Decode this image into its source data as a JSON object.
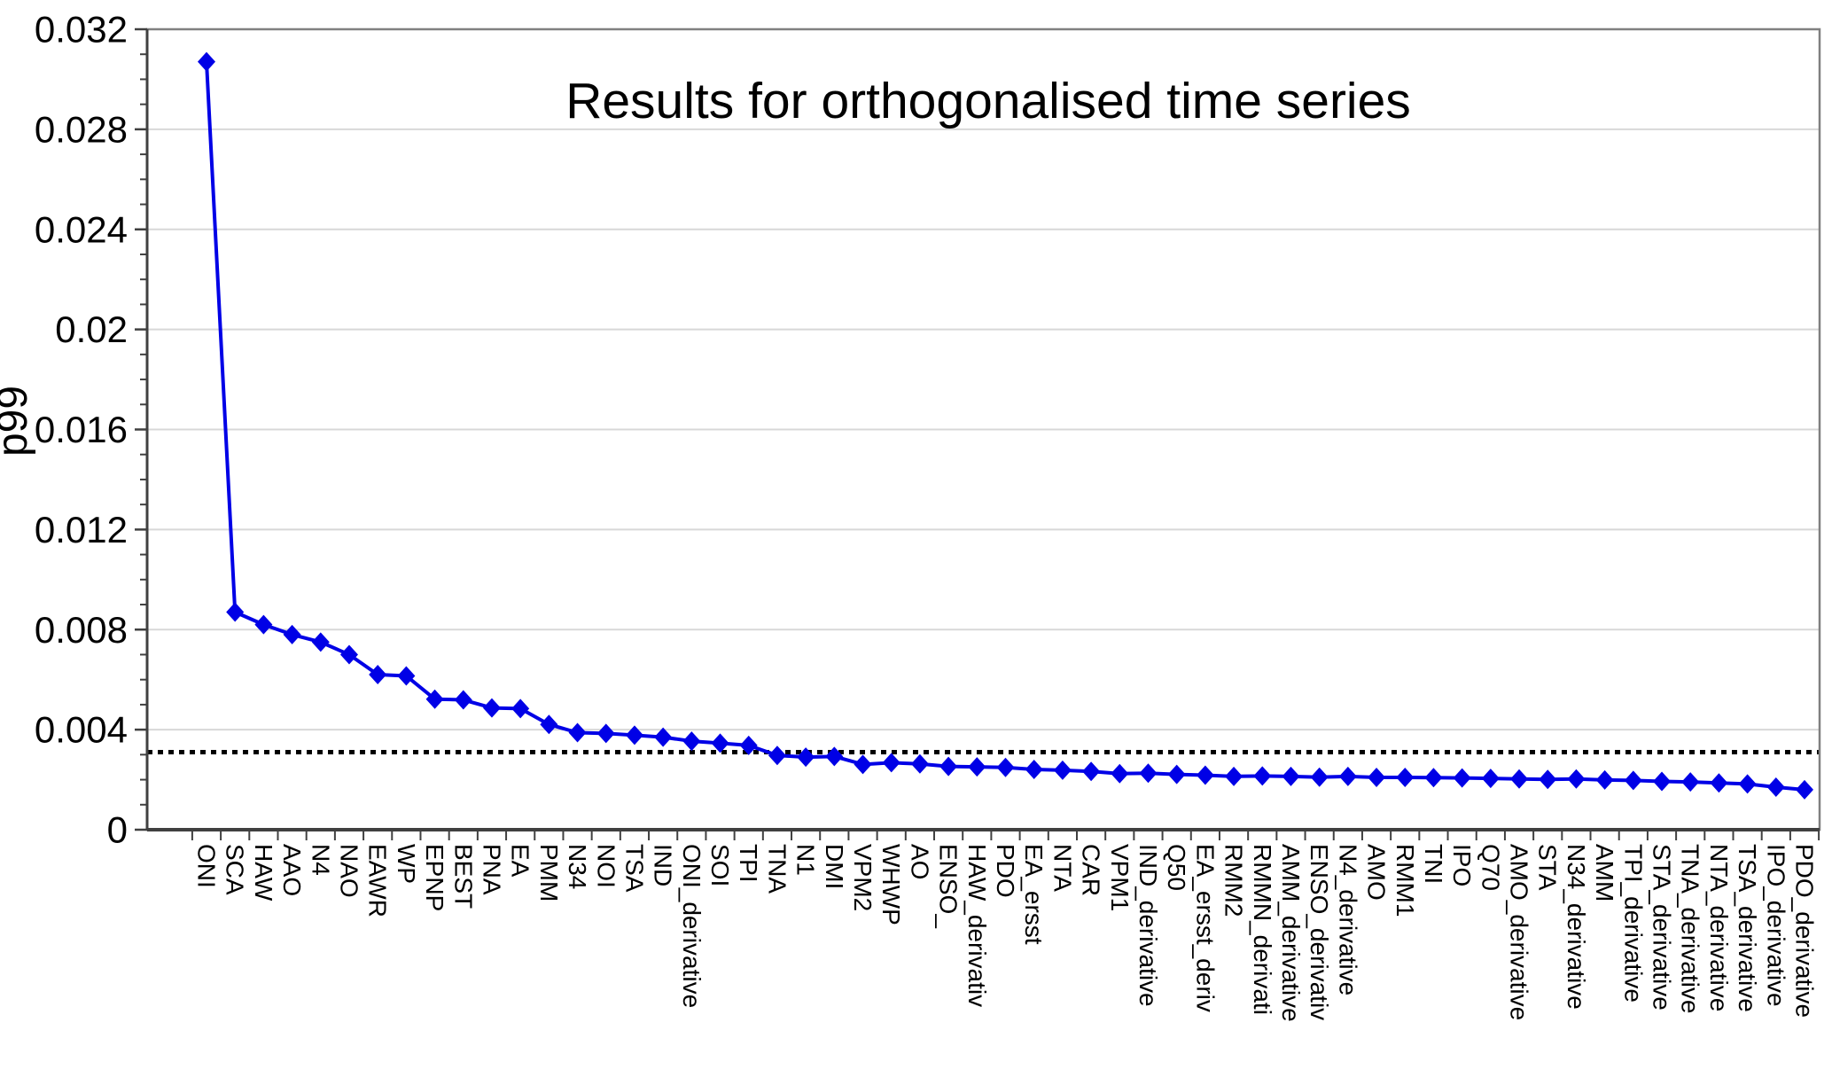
{
  "chart_data": {
    "type": "line",
    "title": "Results for orthogonalised time series",
    "ylabel": "p99",
    "xlabel": "",
    "ylim": [
      0,
      0.032
    ],
    "y_major_tick_interval": 0.004,
    "y_minor_tick_interval": 0.001,
    "y_tick_labels": [
      "0",
      "0.004",
      "0.008",
      "0.012",
      "0.016",
      "0.02",
      "0.024",
      "0.028",
      "0.032"
    ],
    "grid": "horizontal-light-gray",
    "legend": "none",
    "reference_line": {
      "value": 0.0031,
      "style": "dotted",
      "color": "#000000"
    },
    "colors": {
      "series": "#0000e6",
      "gridline": "#d8d8d8",
      "frame": "#808080",
      "axis": "#404040"
    },
    "series": [
      {
        "name": "p99",
        "marker": "diamond",
        "color": "#0000e6",
        "categories": [
          "ONI",
          "SCA",
          "HAW",
          "AAO",
          "N4",
          "NAO",
          "EAWR",
          "WP",
          "EPNP",
          "BEST",
          "PNA",
          "EA",
          "PMM",
          "N34",
          "NOI",
          "TSA",
          "IND",
          "ONI_derivative",
          "SOI",
          "TPI",
          "TNA",
          "N1",
          "DMI",
          "VPM2",
          "WHWP",
          "AO",
          "ENSO_",
          "HAW_derivativ",
          "PDO",
          "EA_ersst",
          "NTA",
          "CAR",
          "VPM1",
          "IND_derivative",
          "Q50",
          "EA_ersst_deriv",
          "RMM2",
          "RMMN_derivati",
          "AMM_derivative",
          "ENSO_derivativ",
          "N4_derivative",
          "AMO",
          "RMM1",
          "TNI",
          "IPO",
          "Q70",
          "AMO_derivative",
          "STA",
          "N34_derivative",
          "AMM",
          "TPI_derivative",
          "STA_derivative",
          "TNA_derivative",
          "NTA_derivative",
          "TSA_derivative",
          "IPO_derivative",
          "PDO_derivative"
        ],
        "values": [
          0.0307,
          0.0087,
          0.0082,
          0.0078,
          0.0075,
          0.007,
          0.0062,
          0.00615,
          0.00522,
          0.00519,
          0.00487,
          0.00484,
          0.00421,
          0.00388,
          0.00385,
          0.00378,
          0.0037,
          0.00354,
          0.00346,
          0.00337,
          0.00297,
          0.0029,
          0.00293,
          0.00261,
          0.00268,
          0.00263,
          0.00253,
          0.00251,
          0.00249,
          0.00241,
          0.00238,
          0.00233,
          0.00224,
          0.00226,
          0.00221,
          0.00218,
          0.00213,
          0.00215,
          0.00213,
          0.0021,
          0.00213,
          0.00209,
          0.00209,
          0.00208,
          0.00207,
          0.00205,
          0.00203,
          0.00201,
          0.00203,
          0.00199,
          0.00197,
          0.00193,
          0.00191,
          0.00187,
          0.00183,
          0.0017,
          0.0016
        ]
      }
    ]
  }
}
